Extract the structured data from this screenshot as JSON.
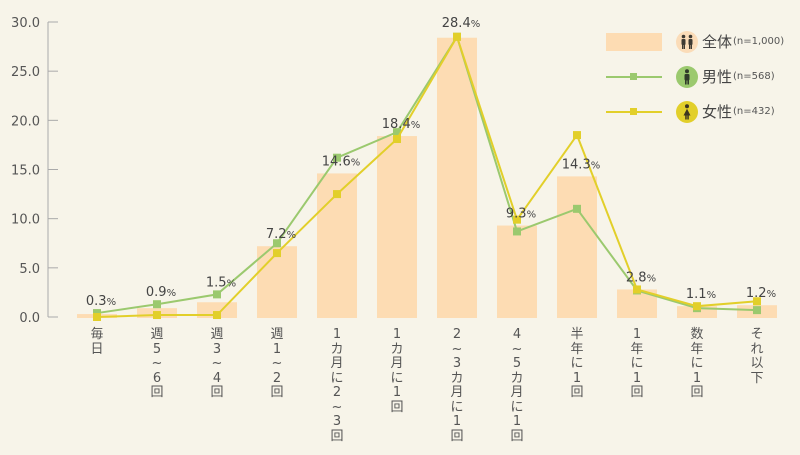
{
  "chart_data": {
    "type": "bar",
    "title": "",
    "xlabel": "",
    "ylabel": "",
    "ylim": [
      0,
      30
    ],
    "yticks": [
      "0.0",
      "5.0",
      "10.0",
      "15.0",
      "20.0",
      "25.0",
      "30.0"
    ],
    "grid": false,
    "legend_position": "top-right",
    "categories": [
      "毎日",
      "週5~6回",
      "週3~4回",
      "週1~2回",
      "1カ月に2~3回",
      "1カ月に1回",
      "2~3カ月に1回",
      "4~5カ月に1回",
      "半年に1回",
      "1年に1回",
      "数年に1回",
      "それ以下"
    ],
    "series": [
      {
        "name": "全体",
        "n_label": "(n=1,000)",
        "kind": "bar",
        "color": "#fddcb3",
        "values": [
          0.3,
          0.9,
          1.5,
          7.2,
          14.6,
          18.4,
          28.4,
          9.3,
          14.3,
          2.8,
          1.1,
          1.2
        ],
        "labels": [
          "0.3",
          "0.9",
          "1.5",
          "7.2",
          "14.6",
          "18.4",
          "28.4",
          "9.3",
          "14.3",
          "2.8",
          "1.1",
          "1.2"
        ]
      },
      {
        "name": "男性",
        "n_label": "(n=568)",
        "kind": "line",
        "color": "#9bc96e",
        "values": [
          0.4,
          1.3,
          2.3,
          7.5,
          16.2,
          18.8,
          28.5,
          8.7,
          11.0,
          2.7,
          0.9,
          0.7
        ]
      },
      {
        "name": "女性",
        "n_label": "(n=432)",
        "kind": "line",
        "color": "#e2cf2a",
        "values": [
          0.0,
          0.2,
          0.2,
          6.5,
          12.5,
          18.1,
          28.5,
          9.9,
          18.5,
          2.8,
          1.1,
          1.6
        ]
      }
    ],
    "percent_suffix": "%"
  },
  "legend": {
    "items": [
      {
        "icon": "two-people-icon",
        "icon_bg": "#fbdcb8",
        "name": "全体",
        "n": "(n=1,000)"
      },
      {
        "icon": "man-icon",
        "icon_bg": "#9bc96e",
        "name": "男性",
        "n": "(n=568)"
      },
      {
        "icon": "woman-icon",
        "icon_bg": "#e2cf2a",
        "name": "女性",
        "n": "(n=432)"
      }
    ]
  }
}
